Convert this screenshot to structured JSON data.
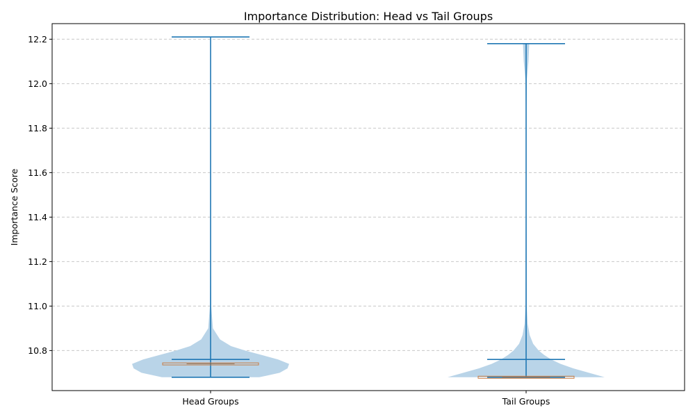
{
  "chart_data": {
    "type": "violin",
    "title": "Importance Distribution: Head vs Tail Groups",
    "xlabel": "",
    "ylabel": "Importance Score",
    "ylim": [
      10.62,
      12.27
    ],
    "yticks": [
      10.8,
      11.0,
      11.2,
      11.4,
      11.6,
      11.8,
      12.0,
      12.2
    ],
    "ytick_labels": [
      "10.8",
      "11.0",
      "11.2",
      "11.4",
      "11.6",
      "11.8",
      "12.0",
      "12.2"
    ],
    "grid": "y-dashed",
    "colors": {
      "violin": "#b9d4e8",
      "stats": "#1f77b4",
      "median_box": "#c97c43"
    },
    "categories": [
      "Head Groups",
      "Tail Groups"
    ],
    "groups": [
      {
        "name": "Head Groups",
        "min": 10.68,
        "max": 12.21,
        "mean": 10.76,
        "median": 10.74,
        "density": [
          [
            10.68,
            0.62
          ],
          [
            10.7,
            0.88
          ],
          [
            10.72,
            0.98
          ],
          [
            10.74,
            1.0
          ],
          [
            10.76,
            0.86
          ],
          [
            10.78,
            0.65
          ],
          [
            10.8,
            0.44
          ],
          [
            10.82,
            0.26
          ],
          [
            10.85,
            0.12
          ],
          [
            10.9,
            0.03
          ],
          [
            11.0,
            0.008
          ],
          [
            11.2,
            0.004
          ],
          [
            12.21,
            0.002
          ]
        ]
      },
      {
        "name": "Tail Groups",
        "min": 10.68,
        "max": 12.18,
        "mean": 10.76,
        "median": 10.68,
        "density": [
          [
            10.68,
            1.0
          ],
          [
            10.7,
            0.8
          ],
          [
            10.72,
            0.6
          ],
          [
            10.74,
            0.44
          ],
          [
            10.76,
            0.32
          ],
          [
            10.78,
            0.23
          ],
          [
            10.8,
            0.16
          ],
          [
            10.83,
            0.09
          ],
          [
            10.87,
            0.045
          ],
          [
            10.92,
            0.02
          ],
          [
            11.0,
            0.008
          ],
          [
            11.5,
            0.004
          ],
          [
            11.9,
            0.005
          ],
          [
            12.02,
            0.01
          ],
          [
            12.1,
            0.03
          ],
          [
            12.18,
            0.04
          ]
        ]
      }
    ]
  }
}
